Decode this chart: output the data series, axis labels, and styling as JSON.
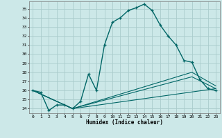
{
  "xlabel": "Humidex (Indice chaleur)",
  "bg_color": "#cce8e8",
  "grid_color": "#aacccc",
  "line_color": "#006666",
  "xlim": [
    -0.5,
    23.5
  ],
  "ylim": [
    23.5,
    35.8
  ],
  "xticks": [
    0,
    1,
    2,
    3,
    4,
    5,
    6,
    7,
    8,
    9,
    10,
    11,
    12,
    13,
    14,
    15,
    16,
    17,
    18,
    19,
    20,
    21,
    22,
    23
  ],
  "yticks": [
    24,
    25,
    26,
    27,
    28,
    29,
    30,
    31,
    32,
    33,
    34,
    35
  ],
  "series": [
    {
      "x": [
        0,
        1,
        2,
        3,
        4,
        5,
        6,
        7,
        8,
        9,
        10,
        11,
        12,
        13,
        14,
        15,
        16,
        17,
        18,
        19,
        20,
        21,
        22,
        23
      ],
      "y": [
        26.0,
        25.8,
        23.8,
        24.4,
        24.4,
        24.0,
        24.8,
        27.8,
        26.0,
        31.0,
        33.5,
        34.0,
        34.8,
        35.1,
        35.5,
        34.8,
        33.2,
        32.0,
        31.0,
        29.3,
        29.1,
        27.2,
        26.2,
        26.0
      ],
      "lw": 1.0,
      "marker": true
    },
    {
      "x": [
        0,
        5,
        23
      ],
      "y": [
        26.0,
        24.0,
        26.2
      ],
      "lw": 0.8,
      "marker": false
    },
    {
      "x": [
        0,
        5,
        20,
        23
      ],
      "y": [
        26.0,
        24.0,
        28.0,
        26.5
      ],
      "lw": 0.8,
      "marker": false
    },
    {
      "x": [
        0,
        5,
        20,
        23
      ],
      "y": [
        26.0,
        24.0,
        27.5,
        26.2
      ],
      "lw": 0.8,
      "marker": false
    }
  ]
}
